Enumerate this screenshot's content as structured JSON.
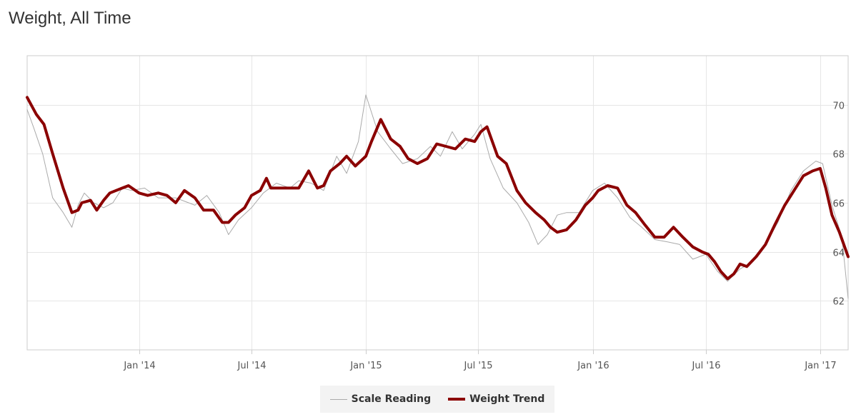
{
  "page": {
    "title": "Weight, All Time"
  },
  "colors": {
    "trend": "#8b0000",
    "scale": "#aaaaaa",
    "grid": "#e6e6e6",
    "axis": "#cccccc"
  },
  "chart_data": {
    "type": "line",
    "title": "Weight, All Time",
    "xlabel": "",
    "ylabel": "",
    "x_range": [
      "2013-07-05",
      "2017-02-15"
    ],
    "ylim": [
      60.0,
      72.0
    ],
    "y_ticks": [
      62,
      64,
      66,
      68,
      70
    ],
    "x_ticks": [
      {
        "date": "2014-01-01",
        "label": "Jan '14"
      },
      {
        "date": "2014-07-01",
        "label": "Jul '14"
      },
      {
        "date": "2015-01-01",
        "label": "Jan '15"
      },
      {
        "date": "2015-07-01",
        "label": "Jul '15"
      },
      {
        "date": "2016-01-01",
        "label": "Jan '16"
      },
      {
        "date": "2016-07-01",
        "label": "Jul '16"
      },
      {
        "date": "2017-01-01",
        "label": "Jan '17"
      }
    ],
    "grid": true,
    "legend_position": "bottom-center",
    "series": [
      {
        "name": "Scale Reading",
        "x": [
          "2013-07-05",
          "2013-07-15",
          "2013-07-30",
          "2013-08-15",
          "2013-09-01",
          "2013-09-15",
          "2013-09-25",
          "2013-10-05",
          "2013-10-20",
          "2013-11-05",
          "2013-11-20",
          "2013-12-05",
          "2013-12-20",
          "2014-01-10",
          "2014-02-01",
          "2014-03-01",
          "2014-04-01",
          "2014-04-20",
          "2014-05-10",
          "2014-05-25",
          "2014-06-10",
          "2014-07-01",
          "2014-07-20",
          "2014-08-10",
          "2014-09-01",
          "2014-09-15",
          "2014-10-05",
          "2014-10-25",
          "2014-11-15",
          "2014-12-01",
          "2014-12-20",
          "2015-01-01",
          "2015-01-20",
          "2015-02-10",
          "2015-03-01",
          "2015-03-25",
          "2015-04-15",
          "2015-05-01",
          "2015-05-20",
          "2015-06-05",
          "2015-06-25",
          "2015-07-05",
          "2015-07-20",
          "2015-08-10",
          "2015-09-01",
          "2015-09-20",
          "2015-10-05",
          "2015-10-20",
          "2015-11-05",
          "2015-11-20",
          "2015-12-10",
          "2016-01-01",
          "2016-01-20",
          "2016-02-10",
          "2016-03-01",
          "2016-03-20",
          "2016-04-10",
          "2016-05-01",
          "2016-05-20",
          "2016-06-10",
          "2016-07-01",
          "2016-07-20",
          "2016-08-05",
          "2016-08-25",
          "2016-09-15",
          "2016-10-05",
          "2016-10-25",
          "2016-11-15",
          "2016-12-05",
          "2016-12-25",
          "2017-01-05",
          "2017-01-20",
          "2017-02-05",
          "2017-02-15"
        ],
        "values": [
          69.8,
          69.1,
          68.0,
          66.2,
          65.6,
          65.0,
          65.9,
          66.4,
          66.0,
          65.8,
          66.0,
          66.6,
          66.5,
          66.6,
          66.2,
          66.2,
          65.9,
          66.3,
          65.6,
          64.7,
          65.3,
          65.8,
          66.4,
          66.8,
          66.6,
          66.9,
          66.8,
          66.5,
          67.9,
          67.2,
          68.5,
          70.4,
          68.9,
          68.2,
          67.6,
          67.8,
          68.3,
          67.9,
          68.9,
          68.2,
          68.8,
          69.2,
          67.8,
          66.6,
          66.0,
          65.2,
          64.3,
          64.7,
          65.5,
          65.6,
          65.6,
          66.5,
          66.8,
          66.2,
          65.4,
          65.0,
          64.5,
          64.4,
          64.3,
          63.7,
          63.9,
          63.2,
          62.8,
          63.3,
          63.6,
          64.3,
          65.2,
          66.5,
          67.3,
          67.7,
          67.6,
          65.9,
          64.6,
          62.1
        ]
      },
      {
        "name": "Weight Trend",
        "x": [
          "2013-07-05",
          "2013-07-20",
          "2013-08-01",
          "2013-08-15",
          "2013-09-01",
          "2013-09-15",
          "2013-09-25",
          "2013-10-01",
          "2013-10-15",
          "2013-10-25",
          "2013-11-05",
          "2013-11-15",
          "2013-11-25",
          "2013-12-05",
          "2013-12-15",
          "2014-01-01",
          "2014-01-15",
          "2014-02-01",
          "2014-02-15",
          "2014-03-01",
          "2014-03-15",
          "2014-04-01",
          "2014-04-15",
          "2014-05-01",
          "2014-05-15",
          "2014-05-25",
          "2014-06-05",
          "2014-06-20",
          "2014-07-01",
          "2014-07-15",
          "2014-07-25",
          "2014-08-01",
          "2014-08-15",
          "2014-09-01",
          "2014-09-15",
          "2014-10-01",
          "2014-10-15",
          "2014-10-25",
          "2014-11-05",
          "2014-11-20",
          "2014-12-01",
          "2014-12-15",
          "2015-01-01",
          "2015-01-10",
          "2015-01-25",
          "2015-02-10",
          "2015-02-25",
          "2015-03-10",
          "2015-03-25",
          "2015-04-10",
          "2015-04-25",
          "2015-05-10",
          "2015-05-25",
          "2015-06-10",
          "2015-06-25",
          "2015-07-05",
          "2015-07-15",
          "2015-08-01",
          "2015-08-15",
          "2015-09-01",
          "2015-09-15",
          "2015-10-01",
          "2015-10-15",
          "2015-10-25",
          "2015-11-05",
          "2015-11-20",
          "2015-12-05",
          "2015-12-20",
          "2016-01-01",
          "2016-01-10",
          "2016-01-25",
          "2016-02-10",
          "2016-02-25",
          "2016-03-10",
          "2016-03-25",
          "2016-04-10",
          "2016-04-25",
          "2016-05-10",
          "2016-05-25",
          "2016-06-10",
          "2016-06-25",
          "2016-07-05",
          "2016-07-15",
          "2016-07-25",
          "2016-08-05",
          "2016-08-15",
          "2016-08-25",
          "2016-09-05",
          "2016-09-20",
          "2016-10-05",
          "2016-10-20",
          "2016-11-05",
          "2016-11-20",
          "2016-12-05",
          "2016-12-20",
          "2017-01-01",
          "2017-01-10",
          "2017-01-20",
          "2017-02-01",
          "2017-02-15"
        ],
        "values": [
          70.3,
          69.6,
          69.2,
          68.0,
          66.6,
          65.6,
          65.7,
          66.0,
          66.1,
          65.7,
          66.1,
          66.4,
          66.5,
          66.6,
          66.7,
          66.4,
          66.3,
          66.4,
          66.3,
          66.0,
          66.5,
          66.2,
          65.7,
          65.7,
          65.2,
          65.2,
          65.5,
          65.8,
          66.3,
          66.5,
          67.0,
          66.6,
          66.6,
          66.6,
          66.6,
          67.3,
          66.6,
          66.7,
          67.3,
          67.6,
          67.9,
          67.5,
          67.9,
          68.5,
          69.4,
          68.6,
          68.3,
          67.8,
          67.6,
          67.8,
          68.4,
          68.3,
          68.2,
          68.6,
          68.5,
          68.9,
          69.1,
          67.9,
          67.6,
          66.5,
          66.0,
          65.6,
          65.3,
          65.0,
          64.8,
          64.9,
          65.3,
          65.9,
          66.2,
          66.5,
          66.7,
          66.6,
          65.9,
          65.6,
          65.1,
          64.6,
          64.6,
          65.0,
          64.6,
          64.2,
          64.0,
          63.9,
          63.6,
          63.2,
          62.9,
          63.1,
          63.5,
          63.4,
          63.8,
          64.3,
          65.1,
          65.9,
          66.5,
          67.1,
          67.3,
          67.4,
          66.6,
          65.5,
          64.8,
          63.8
        ]
      }
    ]
  },
  "legend": {
    "items": [
      {
        "label": "Scale Reading",
        "color": "#aaaaaa"
      },
      {
        "label": "Weight Trend",
        "color": "#8b0000"
      }
    ]
  }
}
